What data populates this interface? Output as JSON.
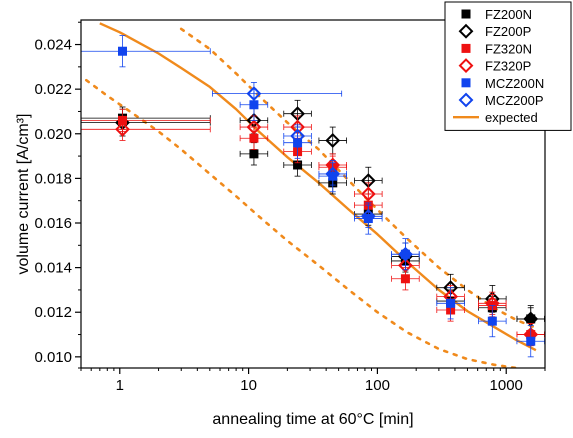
{
  "chart_data": {
    "type": "scatter",
    "x_scale": "log",
    "xlabel": "annealing time at 60°C [min]",
    "ylabel": "volume current [A/cm³]",
    "xlim": [
      0.5,
      2000
    ],
    "ylim": [
      0.0095,
      0.0251
    ],
    "x_ticks": [
      1,
      10,
      100,
      1000
    ],
    "x_tick_labels": [
      "1",
      "10",
      "100",
      "1000"
    ],
    "y_ticks": [
      0.01,
      0.012,
      0.014,
      0.016,
      0.018,
      0.02,
      0.022,
      0.024
    ],
    "y_tick_labels": [
      "0.010",
      "0.012",
      "0.014",
      "0.016",
      "0.018",
      "0.020",
      "0.022",
      "0.024"
    ],
    "grid": false,
    "legend_position": "top-right",
    "series": [
      {
        "name": "FZ200N",
        "color": "#000000",
        "marker": "square-filled",
        "x": [
          1.05,
          11,
          24,
          45,
          85,
          165,
          370,
          780,
          1550
        ],
        "y": [
          0.0207,
          0.0191,
          0.0186,
          0.0178,
          0.0164,
          0.0143,
          0.0125,
          0.0122,
          0.0117
        ],
        "yerr": 0.0005
      },
      {
        "name": "FZ200P",
        "color": "#000000",
        "marker": "diamond-open",
        "x": [
          1.05,
          11,
          24,
          45,
          85,
          165,
          370,
          780,
          1550
        ],
        "y": [
          0.0205,
          0.0206,
          0.0209,
          0.0197,
          0.0179,
          0.0145,
          0.0131,
          0.0126,
          0.0117
        ],
        "yerr": 0.0006
      },
      {
        "name": "FZ320N",
        "color": "#ee1111",
        "marker": "square-filled",
        "x": [
          1.05,
          11,
          24,
          45,
          85,
          165,
          370,
          780,
          1550
        ],
        "y": [
          0.0206,
          0.0198,
          0.0192,
          0.0185,
          0.0168,
          0.0135,
          0.0121,
          0.0123,
          0.011
        ],
        "yerr": 0.0005
      },
      {
        "name": "FZ320P",
        "color": "#ee1111",
        "marker": "diamond-open",
        "x": [
          1.05,
          11,
          24,
          45,
          85,
          165,
          370,
          780,
          1550
        ],
        "y": [
          0.0202,
          0.0203,
          0.0203,
          0.0186,
          0.0173,
          0.0141,
          0.0127,
          0.0124,
          0.011
        ],
        "yerr": 0.0005
      },
      {
        "name": "MCZ200N",
        "color": "#1144ee",
        "marker": "square-filled",
        "x": [
          1.05,
          11,
          24,
          45,
          85,
          165,
          370,
          780,
          1550
        ],
        "y": [
          0.0237,
          0.0213,
          0.0196,
          0.0181,
          0.0162,
          0.0146,
          0.0124,
          0.0116,
          0.0107
        ],
        "yerr": 0.0007
      },
      {
        "name": "MCZ200P",
        "color": "#1144ee",
        "marker": "diamond-open",
        "x": [
          11,
          24,
          45,
          85,
          165
        ],
        "y": [
          0.0218,
          0.0199,
          0.0182,
          0.0163,
          0.0146
        ],
        "yerr": 0.0005
      },
      {
        "name": "expected",
        "color": "#f08a1c",
        "marker": "line",
        "x": [
          0.7,
          1,
          2,
          3,
          5,
          8,
          12,
          20,
          35,
          60,
          100,
          170,
          300,
          500,
          800,
          1200,
          1700
        ],
        "y": [
          0.02495,
          0.02455,
          0.0236,
          0.02295,
          0.0221,
          0.0211,
          0.0201,
          0.01895,
          0.0178,
          0.0166,
          0.0155,
          0.01425,
          0.013,
          0.01205,
          0.01135,
          0.01075,
          0.0103
        ]
      }
    ],
    "bands": [
      {
        "color": "#f08a1c",
        "x": [
          3,
          5,
          8,
          12,
          20,
          35,
          60,
          100,
          170,
          300,
          500,
          800,
          1200,
          1700
        ],
        "y": [
          0.0247,
          0.0238,
          0.0227,
          0.0217,
          0.0205,
          0.0193,
          0.0179,
          0.0166,
          0.0153,
          0.014,
          0.013,
          0.0122,
          0.01165,
          0.0113
        ]
      },
      {
        "color": "#f08a1c",
        "x": [
          0.55,
          0.8,
          1.2,
          2,
          3,
          5,
          8,
          12,
          20,
          35,
          60,
          100,
          170,
          300,
          500,
          800,
          1200
        ],
        "y": [
          0.0224,
          0.0217,
          0.021,
          0.0201,
          0.0193,
          0.0182,
          0.0172,
          0.0163,
          0.0152,
          0.0141,
          0.013,
          0.012,
          0.0111,
          0.01035,
          0.0099,
          0.00965,
          0.0095
        ]
      }
    ]
  }
}
